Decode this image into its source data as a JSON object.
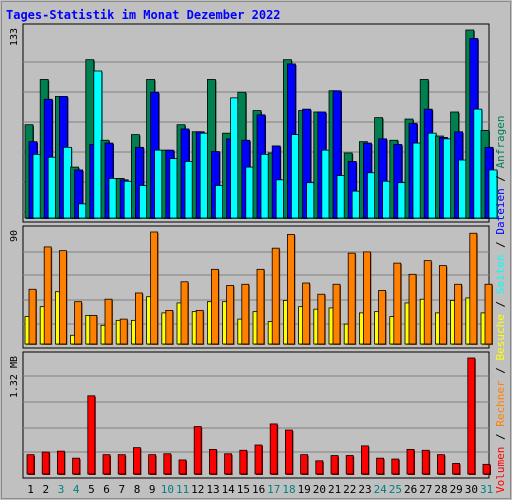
{
  "title": "Tages-Statistik im Monat Dezember 2022",
  "chart_data": [
    {
      "type": "bar",
      "y_max_label": "133",
      "ylim": [
        0,
        133
      ],
      "grid": true,
      "categories": [
        "1",
        "2",
        "3",
        "4",
        "5",
        "6",
        "7",
        "8",
        "9",
        "10",
        "11",
        "12",
        "13",
        "14",
        "15",
        "16",
        "17",
        "18",
        "19",
        "20",
        "21",
        "22",
        "23",
        "24",
        "25",
        "26",
        "27",
        "28",
        "29",
        "30",
        "31"
      ],
      "series": [
        {
          "name": "Anfragen",
          "color": "#008050",
          "values": [
            66,
            98,
            86,
            36,
            112,
            55,
            28,
            59,
            98,
            48,
            66,
            61,
            98,
            60,
            89,
            76,
            46,
            112,
            76,
            75,
            90,
            46,
            54,
            71,
            55,
            70,
            98,
            58,
            75,
            133,
            62
          ]
        },
        {
          "name": "Dateien",
          "color": "#0000ff",
          "values": [
            54,
            84,
            86,
            34,
            52,
            53,
            27,
            50,
            89,
            48,
            63,
            61,
            47,
            56,
            55,
            73,
            51,
            109,
            77,
            75,
            90,
            40,
            53,
            56,
            52,
            67,
            77,
            57,
            61,
            127,
            50
          ]
        },
        {
          "name": "Seiten",
          "color": "#00ffff",
          "values": [
            45,
            43,
            50,
            10,
            104,
            28,
            26,
            23,
            48,
            42,
            40,
            60,
            23,
            85,
            36,
            45,
            27,
            59,
            25,
            48,
            30,
            19,
            32,
            26,
            25,
            53,
            60,
            56,
            41,
            77,
            34
          ]
        }
      ],
      "legend": "right, vertical"
    },
    {
      "type": "bar",
      "y_max_label": "90",
      "ylim": [
        0,
        90
      ],
      "grid": true,
      "categories": [
        "1",
        "2",
        "3",
        "4",
        "5",
        "6",
        "7",
        "8",
        "9",
        "10",
        "11",
        "12",
        "13",
        "14",
        "15",
        "16",
        "17",
        "18",
        "19",
        "20",
        "21",
        "22",
        "23",
        "24",
        "25",
        "26",
        "27",
        "28",
        "29",
        "30",
        "31"
      ],
      "series": [
        {
          "name": "Besuche",
          "color": "#ffff00",
          "values": [
            22,
            30,
            42,
            7,
            23,
            15,
            19,
            19,
            38,
            25,
            33,
            26,
            34,
            34,
            20,
            26,
            18,
            35,
            30,
            28,
            29,
            16,
            25,
            26,
            22,
            33,
            36,
            25,
            35,
            37,
            25
          ]
        },
        {
          "name": "Rechner",
          "color": "#ff8000",
          "values": [
            44,
            78,
            75,
            34,
            23,
            36,
            20,
            41,
            90,
            27,
            50,
            27,
            60,
            47,
            48,
            60,
            77,
            88,
            49,
            40,
            48,
            73,
            74,
            43,
            65,
            56,
            67,
            63,
            48,
            89,
            48
          ]
        }
      ],
      "legend": "right, vertical"
    },
    {
      "type": "bar",
      "y_max_label": "1.32 MB",
      "ylim": [
        0,
        1.32
      ],
      "grid": true,
      "categories": [
        "1",
        "2",
        "3",
        "4",
        "5",
        "6",
        "7",
        "8",
        "9",
        "10",
        "11",
        "12",
        "13",
        "14",
        "15",
        "16",
        "17",
        "18",
        "19",
        "20",
        "21",
        "22",
        "23",
        "24",
        "25",
        "26",
        "27",
        "28",
        "29",
        "30",
        "31"
      ],
      "series": [
        {
          "name": "Volumen",
          "color": "#ff0000",
          "values": [
            0.22,
            0.25,
            0.26,
            0.18,
            0.89,
            0.22,
            0.22,
            0.3,
            0.22,
            0.23,
            0.16,
            0.54,
            0.28,
            0.23,
            0.27,
            0.33,
            0.57,
            0.5,
            0.22,
            0.15,
            0.21,
            0.21,
            0.32,
            0.18,
            0.17,
            0.28,
            0.27,
            0.22,
            0.12,
            1.32,
            0.11
          ]
        }
      ],
      "legend": "right, vertical"
    }
  ],
  "x_labels": [
    "1",
    "2",
    "3",
    "4",
    "5",
    "6",
    "7",
    "8",
    "9",
    "10",
    "11",
    "12",
    "13",
    "14",
    "15",
    "16",
    "17",
    "18",
    "19",
    "20",
    "21",
    "22",
    "23",
    "24",
    "25",
    "26",
    "27",
    "28",
    "29",
    "30",
    "31"
  ],
  "weekend_days": [
    "3",
    "4",
    "10",
    "11",
    "17",
    "18",
    "24",
    "25",
    "31"
  ],
  "weekend_color": "#008080",
  "legend_labels": [
    {
      "text": "Volumen",
      "color": "#ff0000"
    },
    {
      "text": " / ",
      "color": "#000000"
    },
    {
      "text": "Rechner",
      "color": "#ff8000"
    },
    {
      "text": " / ",
      "color": "#000000"
    },
    {
      "text": "Besuche",
      "color": "#ffff00"
    },
    {
      "text": " / ",
      "color": "#000000"
    },
    {
      "text": "Seiten",
      "color": "#00ffff"
    },
    {
      "text": " / ",
      "color": "#000000"
    },
    {
      "text": "Dateien",
      "color": "#0000ff"
    },
    {
      "text": " / ",
      "color": "#000000"
    },
    {
      "text": "Anfragen",
      "color": "#008050"
    }
  ]
}
